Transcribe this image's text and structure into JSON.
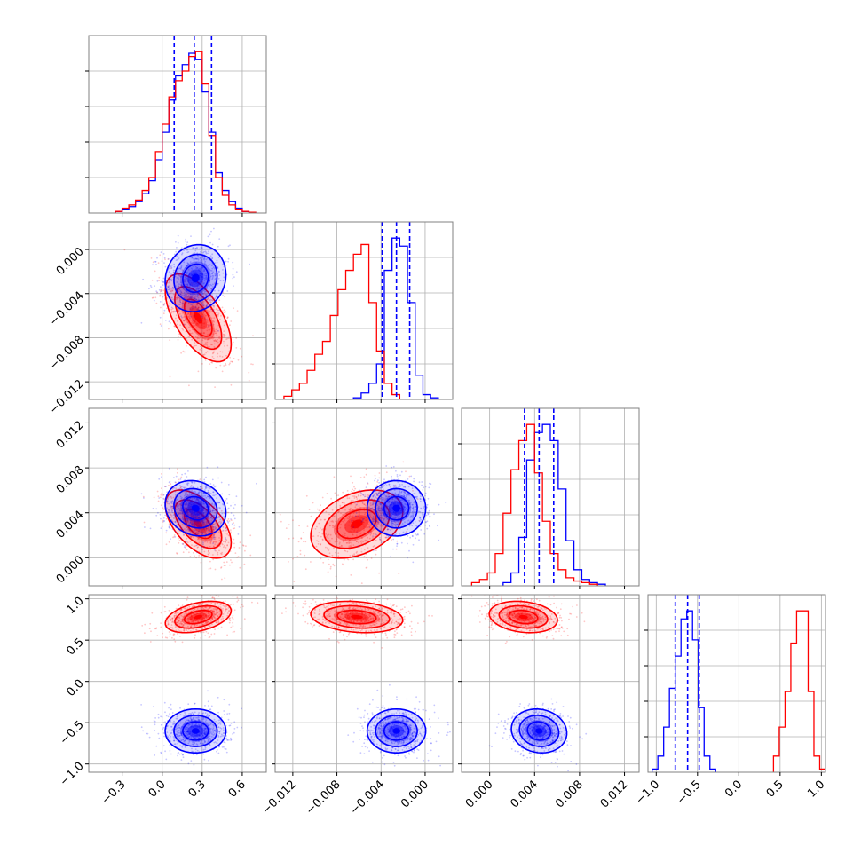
{
  "chart_data": {
    "type": "corner",
    "colors": {
      "series_a": "#0000ff",
      "series_b": "#ff0000",
      "grid": "#b0b0b0",
      "axes": "#808080"
    },
    "series": [
      {
        "color": "#0000ff"
      },
      {
        "color": "#ff0000"
      }
    ],
    "parameters": [
      {
        "range": [
          -0.55,
          0.78
        ],
        "ticks": [
          -0.3,
          0.0,
          0.3,
          0.6
        ],
        "tick_labels": [
          "−0.3",
          "0.0",
          "0.3",
          "0.6"
        ],
        "quantiles_series_a": [
          0.09,
          0.24,
          0.37
        ],
        "hist_series_a": {
          "edges": [
            -0.35,
            -0.3,
            -0.25,
            -0.2,
            -0.15,
            -0.1,
            -0.05,
            0.0,
            0.05,
            0.1,
            0.15,
            0.2,
            0.25,
            0.3,
            0.35,
            0.4,
            0.45,
            0.5,
            0.55,
            0.6,
            0.65,
            0.7
          ],
          "counts": [
            1,
            2,
            4,
            7,
            12,
            20,
            33,
            50,
            70,
            85,
            92,
            99,
            95,
            75,
            50,
            25,
            14,
            7,
            3,
            1,
            0.5
          ]
        },
        "hist_series_b": {
          "edges": [
            -0.35,
            -0.3,
            -0.25,
            -0.2,
            -0.15,
            -0.1,
            -0.05,
            0.0,
            0.05,
            0.1,
            0.15,
            0.2,
            0.25,
            0.3,
            0.35,
            0.4,
            0.45,
            0.5,
            0.55,
            0.6,
            0.65,
            0.7
          ],
          "counts": [
            1,
            3,
            5,
            8,
            14,
            22,
            38,
            55,
            72,
            82,
            88,
            97,
            100,
            80,
            48,
            22,
            11,
            5,
            2,
            1,
            0.5
          ]
        }
      },
      {
        "range": [
          -0.0136,
          0.0025
        ],
        "ticks": [
          -0.012,
          -0.008,
          -0.004,
          0.0
        ],
        "tick_labels": [
          "−0.012",
          "−0.008",
          "−0.004",
          "0.000"
        ],
        "quantiles_series_a": [
          -0.0039,
          -0.0026,
          -0.0014
        ],
        "hist_series_a": {
          "edges": [
            -0.0065,
            -0.0058,
            -0.0051,
            -0.0044,
            -0.0037,
            -0.003,
            -0.0023,
            -0.0016,
            -0.0009,
            -0.0002,
            0.0005,
            0.0012
          ],
          "counts": [
            1,
            4,
            10,
            22,
            80,
            100,
            95,
            60,
            15,
            3,
            1
          ]
        },
        "hist_series_b": {
          "edges": [
            -0.0128,
            -0.0121,
            -0.0114,
            -0.0107,
            -0.01,
            -0.0093,
            -0.0086,
            -0.0079,
            -0.0072,
            -0.0065,
            -0.0058,
            -0.0051,
            -0.0044,
            -0.0037,
            -0.003,
            -0.0023
          ],
          "counts": [
            2,
            6,
            10,
            18,
            28,
            36,
            52,
            68,
            80,
            90,
            96,
            60,
            30,
            10,
            3
          ]
        }
      },
      {
        "range": [
          -0.0025,
          0.0133
        ],
        "ticks": [
          0.0,
          0.004,
          0.008,
          0.012
        ],
        "tick_labels": [
          "0.000",
          "0.004",
          "0.008",
          "0.012"
        ],
        "quantiles_series_a": [
          0.0031,
          0.0044,
          0.0057
        ],
        "hist_series_a": {
          "edges": [
            0.0012,
            0.0019,
            0.0026,
            0.0033,
            0.004,
            0.0047,
            0.0054,
            0.0061,
            0.0068,
            0.0075,
            0.0082,
            0.0089,
            0.0096,
            0.0103
          ],
          "counts": [
            2,
            8,
            30,
            78,
            95,
            100,
            90,
            60,
            28,
            10,
            4,
            2,
            1
          ]
        },
        "hist_series_b": {
          "edges": [
            -0.0016,
            -0.0009,
            -0.0002,
            0.0005,
            0.0012,
            0.0019,
            0.0026,
            0.0033,
            0.004,
            0.0047,
            0.0054,
            0.0061,
            0.0068,
            0.0075,
            0.0082,
            0.0089,
            0.0096
          ],
          "counts": [
            2,
            4,
            8,
            20,
            45,
            72,
            90,
            100,
            70,
            40,
            20,
            10,
            5,
            3,
            2,
            1
          ]
        }
      },
      {
        "range": [
          -1.1,
          1.05
        ],
        "ticks": [
          -1.0,
          -0.5,
          0.0,
          0.5,
          1.0
        ],
        "tick_labels": [
          "−1.0",
          "−0.5",
          "0.0",
          "0.5",
          "1.0"
        ],
        "quantiles_series_a": [
          -0.77,
          -0.62,
          -0.48
        ],
        "hist_series_a": {
          "edges": [
            -1.05,
            -0.98,
            -0.91,
            -0.84,
            -0.77,
            -0.7,
            -0.63,
            -0.56,
            -0.49,
            -0.42,
            -0.35,
            -0.28
          ],
          "counts": [
            2,
            10,
            28,
            52,
            72,
            95,
            100,
            82,
            40,
            10,
            2
          ]
        },
        "hist_series_b": {
          "edges": [
            0.42,
            0.49,
            0.56,
            0.63,
            0.7,
            0.77,
            0.84,
            0.91,
            0.98,
            1.05
          ],
          "counts": [
            10,
            28,
            50,
            80,
            100,
            100,
            50,
            10,
            2
          ]
        }
      }
    ],
    "pairs_series_a": [
      {
        "row": 1,
        "col": 0,
        "center": [
          0.25,
          -0.0026
        ],
        "spread": [
          0.12,
          0.0016
        ],
        "rho": 0.1
      },
      {
        "row": 2,
        "col": 0,
        "center": [
          0.25,
          0.0044
        ],
        "spread": [
          0.12,
          0.0013
        ],
        "rho": -0.15
      },
      {
        "row": 2,
        "col": 1,
        "center": [
          -0.0026,
          0.0044
        ],
        "spread": [
          0.0014,
          0.0013
        ],
        "rho": 0.0
      },
      {
        "row": 3,
        "col": 0,
        "center": [
          0.25,
          -0.6
        ],
        "spread": [
          0.12,
          0.14
        ],
        "rho": 0.0
      },
      {
        "row": 3,
        "col": 1,
        "center": [
          -0.0026,
          -0.6
        ],
        "spread": [
          0.0014,
          0.14
        ],
        "rho": 0.0
      },
      {
        "row": 3,
        "col": 2,
        "center": [
          0.0044,
          -0.6
        ],
        "spread": [
          0.0013,
          0.14
        ],
        "rho": -0.1
      }
    ],
    "pairs_series_b": [
      {
        "row": 1,
        "col": 0,
        "center": [
          0.27,
          -0.0062
        ],
        "spread": [
          0.13,
          0.0021
        ],
        "rho": -0.6
      },
      {
        "row": 2,
        "col": 0,
        "center": [
          0.27,
          0.003
        ],
        "spread": [
          0.13,
          0.0016
        ],
        "rho": -0.55
      },
      {
        "row": 2,
        "col": 1,
        "center": [
          -0.0062,
          0.003
        ],
        "spread": [
          0.0022,
          0.0016
        ],
        "rho": 0.35
      },
      {
        "row": 3,
        "col": 0,
        "center": [
          0.27,
          0.78
        ],
        "spread": [
          0.13,
          0.1
        ],
        "rho": 0.4
      },
      {
        "row": 3,
        "col": 1,
        "center": [
          -0.0062,
          0.78
        ],
        "spread": [
          0.0022,
          0.1
        ],
        "rho": -0.2
      },
      {
        "row": 3,
        "col": 2,
        "center": [
          0.003,
          0.78
        ],
        "spread": [
          0.0016,
          0.1
        ],
        "rho": -0.2
      }
    ]
  }
}
